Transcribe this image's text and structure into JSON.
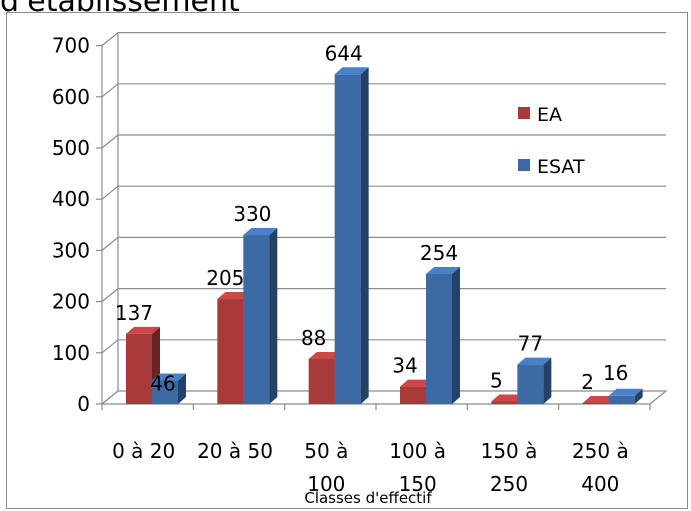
{
  "page": {
    "title_fragment": "d'établissement"
  },
  "chart_data": {
    "type": "bar",
    "title": "",
    "xlabel": "Classes d'effectif",
    "ylabel": "",
    "ylim": [
      0,
      700
    ],
    "yticks": [
      "0",
      "100",
      "200",
      "300",
      "400",
      "500",
      "600",
      "700"
    ],
    "categories": [
      "0 à 20",
      "20 à 50",
      "50 à 100",
      "100 à 150",
      "150 à 250",
      "250 à 400"
    ],
    "category_lines": [
      [
        "0 à 20"
      ],
      [
        "20 à 50"
      ],
      [
        "50 à",
        "100"
      ],
      [
        "100 à",
        "150"
      ],
      [
        "150 à",
        "250"
      ],
      [
        "250 à",
        "400"
      ]
    ],
    "series": [
      {
        "name": "EA",
        "values": [
          137,
          205,
          88,
          34,
          5,
          2
        ],
        "color": "#a83a3a"
      },
      {
        "name": "ESAT",
        "values": [
          46,
          330,
          644,
          254,
          77,
          16
        ],
        "color": "#3b6aa5"
      }
    ],
    "data_labels": {
      "EA": [
        "137",
        "205",
        "88",
        "34",
        "5",
        "2"
      ],
      "ESAT": [
        "46",
        "330",
        "644",
        "254",
        "77",
        "16"
      ]
    },
    "grid": true,
    "legend_position": "right",
    "three_d": true
  }
}
